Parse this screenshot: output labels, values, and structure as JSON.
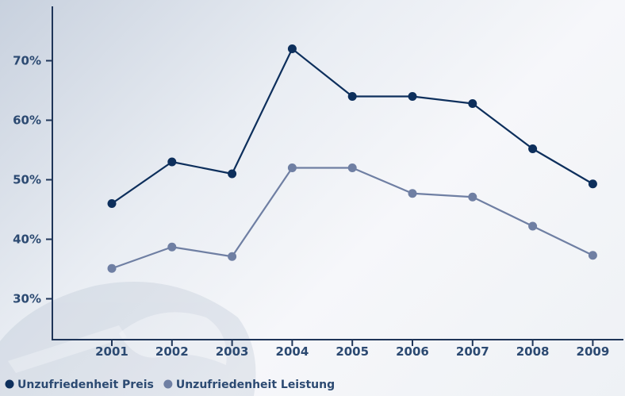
{
  "chart_data": {
    "type": "line",
    "title": "",
    "xlabel": "",
    "ylabel": "",
    "x": [
      "2001",
      "2002",
      "2003",
      "2004",
      "2005",
      "2006",
      "2007",
      "2008",
      "2009"
    ],
    "y_ticks": [
      "30%",
      "40%",
      "50%",
      "60%",
      "70%"
    ],
    "ylim": [
      23,
      79
    ],
    "grid": false,
    "legend_position": "bottom-left",
    "series": [
      {
        "name": "Unzufriedenheit Preis",
        "color": "#0d2f5c",
        "values": [
          46,
          53,
          51,
          72,
          64,
          64,
          62.8,
          55.2,
          49.3
        ]
      },
      {
        "name": "Unzufriedenheit Leistung",
        "color": "#6f7fa3",
        "values": [
          35.1,
          38.7,
          37.1,
          52,
          52,
          47.7,
          47.1,
          42.2,
          37.3
        ]
      }
    ]
  }
}
